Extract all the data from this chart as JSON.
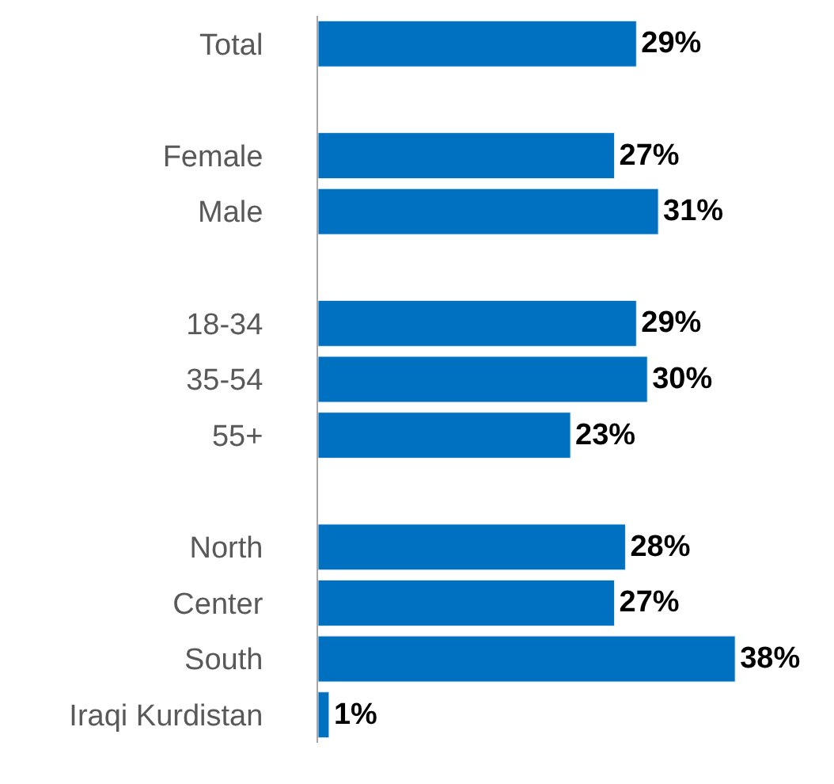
{
  "chart_data": {
    "type": "bar",
    "orientation": "horizontal",
    "categories": [
      "Total",
      null,
      "Female",
      "Male",
      null,
      "18-34",
      "35-54",
      "55+",
      null,
      "North",
      "Center",
      "South",
      "Iraqi Kurdistan"
    ],
    "values": [
      29,
      null,
      27,
      31,
      null,
      29,
      30,
      23,
      null,
      28,
      27,
      38,
      1
    ],
    "value_labels": [
      "29%",
      null,
      "27%",
      "31%",
      null,
      "29%",
      "30%",
      "23%",
      null,
      "28%",
      "27%",
      "38%",
      "1%"
    ],
    "color": "#0070c0",
    "xlim": [
      0,
      47
    ],
    "tick_labels": "y"
  }
}
